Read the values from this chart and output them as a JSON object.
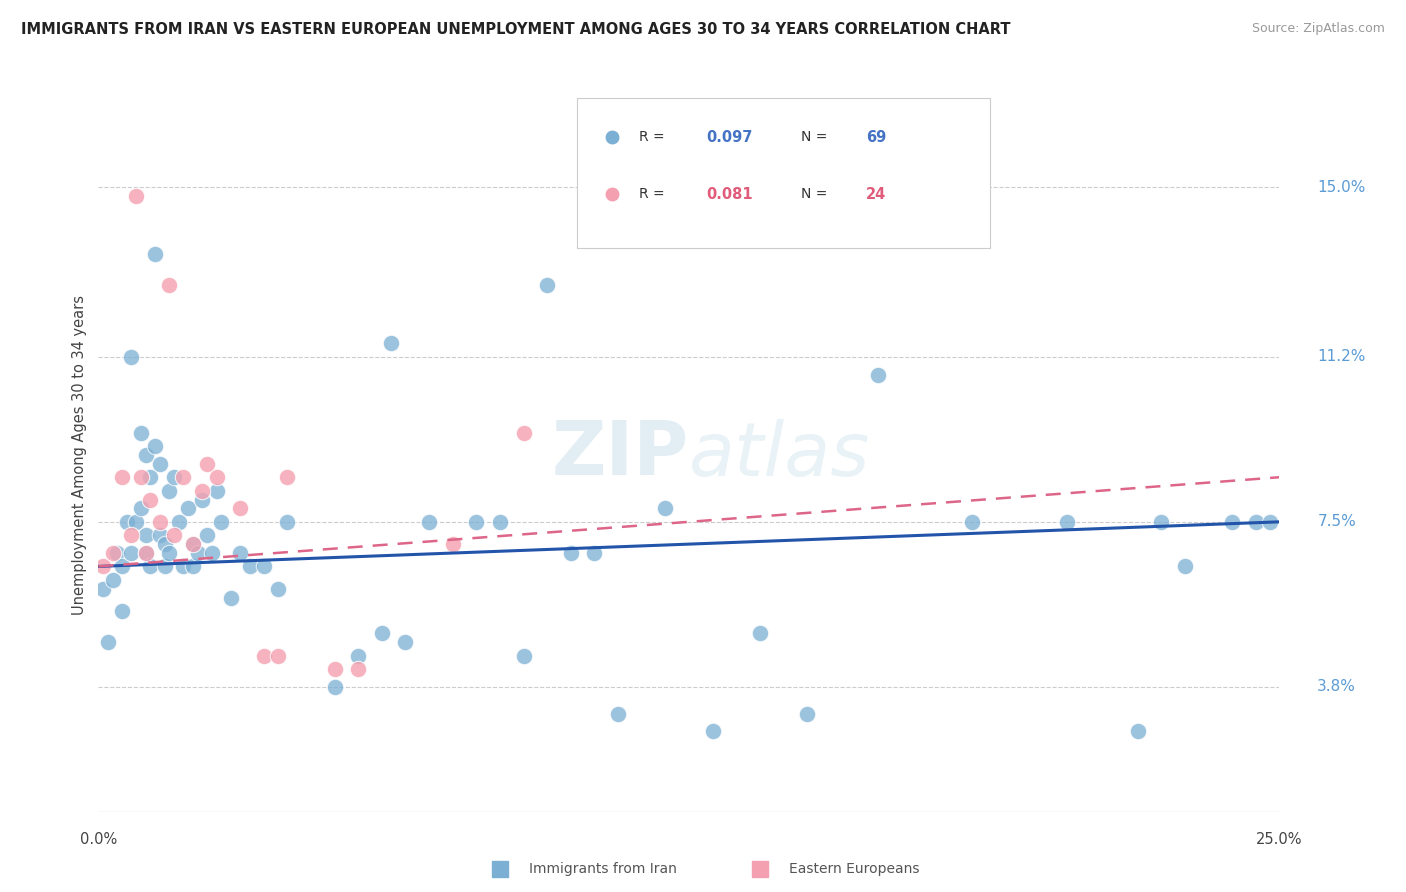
{
  "title": "IMMIGRANTS FROM IRAN VS EASTERN EUROPEAN UNEMPLOYMENT AMONG AGES 30 TO 34 YEARS CORRELATION CHART",
  "source": "Source: ZipAtlas.com",
  "ylabel": "Unemployment Among Ages 30 to 34 years",
  "ytick_vals": [
    3.8,
    7.5,
    11.2,
    15.0
  ],
  "xlim": [
    0.0,
    25.0
  ],
  "ylim": [
    1.0,
    17.0
  ],
  "legend1_label": "Immigrants from Iran",
  "legend2_label": "Eastern Europeans",
  "r1": "0.097",
  "n1": "69",
  "r2": "0.081",
  "n2": "24",
  "color_blue": "#7bafd4",
  "color_pink": "#f4a0b0",
  "color_blue_text": "#4472c4",
  "color_pink_text": "#e05c7a",
  "color_right_axis": "#5b9bd5",
  "blue_x": [
    0.1,
    0.2,
    0.3,
    0.4,
    0.5,
    0.5,
    0.6,
    0.7,
    0.7,
    0.8,
    0.9,
    0.9,
    1.0,
    1.0,
    1.0,
    1.1,
    1.1,
    1.2,
    1.2,
    1.3,
    1.3,
    1.4,
    1.4,
    1.5,
    1.5,
    1.6,
    1.7,
    1.8,
    1.9,
    2.0,
    2.0,
    2.1,
    2.2,
    2.3,
    2.4,
    2.5,
    2.6,
    2.8,
    3.0,
    3.2,
    3.5,
    3.8,
    4.0,
    5.0,
    5.5,
    6.0,
    6.5,
    7.0,
    8.0,
    8.5,
    9.5,
    10.0,
    11.0,
    13.0,
    14.0,
    15.0,
    16.5,
    18.5,
    20.5,
    22.0,
    22.5,
    23.0,
    24.0,
    24.5,
    24.8,
    9.0,
    10.5,
    12.0,
    6.2
  ],
  "blue_y": [
    6.0,
    4.8,
    6.2,
    6.8,
    6.5,
    5.5,
    7.5,
    11.2,
    6.8,
    7.5,
    7.8,
    9.5,
    6.8,
    7.2,
    9.0,
    8.5,
    6.5,
    13.5,
    9.2,
    7.2,
    8.8,
    7.0,
    6.5,
    8.2,
    6.8,
    8.5,
    7.5,
    6.5,
    7.8,
    6.5,
    7.0,
    6.8,
    8.0,
    7.2,
    6.8,
    8.2,
    7.5,
    5.8,
    6.8,
    6.5,
    6.5,
    6.0,
    7.5,
    3.8,
    4.5,
    5.0,
    4.8,
    7.5,
    7.5,
    7.5,
    12.8,
    6.8,
    3.2,
    2.8,
    5.0,
    3.2,
    10.8,
    7.5,
    7.5,
    2.8,
    7.5,
    6.5,
    7.5,
    7.5,
    7.5,
    4.5,
    6.8,
    7.8,
    11.5
  ],
  "pink_x": [
    0.1,
    0.3,
    0.5,
    0.7,
    0.8,
    0.9,
    1.0,
    1.1,
    1.3,
    1.5,
    1.6,
    1.8,
    2.0,
    2.2,
    2.3,
    2.5,
    3.0,
    3.5,
    3.8,
    4.0,
    5.0,
    5.5,
    7.5,
    9.0
  ],
  "pink_y": [
    6.5,
    6.8,
    8.5,
    7.2,
    14.8,
    8.5,
    6.8,
    8.0,
    7.5,
    12.8,
    7.2,
    8.5,
    7.0,
    8.2,
    8.8,
    8.5,
    7.8,
    4.5,
    4.5,
    8.5,
    4.2,
    4.2,
    7.0,
    9.5
  ]
}
